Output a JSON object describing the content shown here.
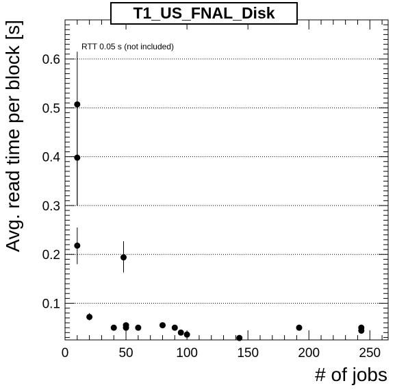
{
  "chart_data": {
    "type": "scatter",
    "title": "T1_US_FNAL_Disk",
    "xlabel": "# of jobs",
    "ylabel": "Avg. read time per block [s]",
    "annotation": "RTT 0.05 s (not included)",
    "xlim": [
      0,
      265
    ],
    "ylim": [
      0.025,
      0.68
    ],
    "xticks": [
      0,
      50,
      100,
      150,
      200,
      250
    ],
    "yticks": [
      0.1,
      0.2,
      0.3,
      0.4,
      0.5,
      0.6
    ],
    "xtick_labels": [
      "0",
      "50",
      "100",
      "150",
      "200",
      "250"
    ],
    "ytick_labels": [
      "0.1",
      "0.2",
      "0.3",
      "0.4",
      "0.5",
      "0.6"
    ],
    "grid_y": true,
    "points": [
      {
        "x": 10,
        "y": 0.507,
        "err_low": 0.3,
        "err_high": 0.615
      },
      {
        "x": 10,
        "y": 0.398,
        "err_low": 0.3,
        "err_high": 0.5
      },
      {
        "x": 10,
        "y": 0.218,
        "err_low": 0.18,
        "err_high": 0.255
      },
      {
        "x": 20,
        "y": 0.072,
        "err_low": 0.065,
        "err_high": 0.08
      },
      {
        "x": 40,
        "y": 0.05
      },
      {
        "x": 48,
        "y": 0.194,
        "err_low": 0.163,
        "err_high": 0.227
      },
      {
        "x": 50,
        "y": 0.055
      },
      {
        "x": 50,
        "y": 0.05
      },
      {
        "x": 60,
        "y": 0.05
      },
      {
        "x": 80,
        "y": 0.055
      },
      {
        "x": 90,
        "y": 0.05
      },
      {
        "x": 95,
        "y": 0.04
      },
      {
        "x": 100,
        "y": 0.036
      },
      {
        "x": 143,
        "y": 0.029
      },
      {
        "x": 192,
        "y": 0.05
      },
      {
        "x": 243,
        "y": 0.05
      },
      {
        "x": 243,
        "y": 0.044
      }
    ]
  }
}
